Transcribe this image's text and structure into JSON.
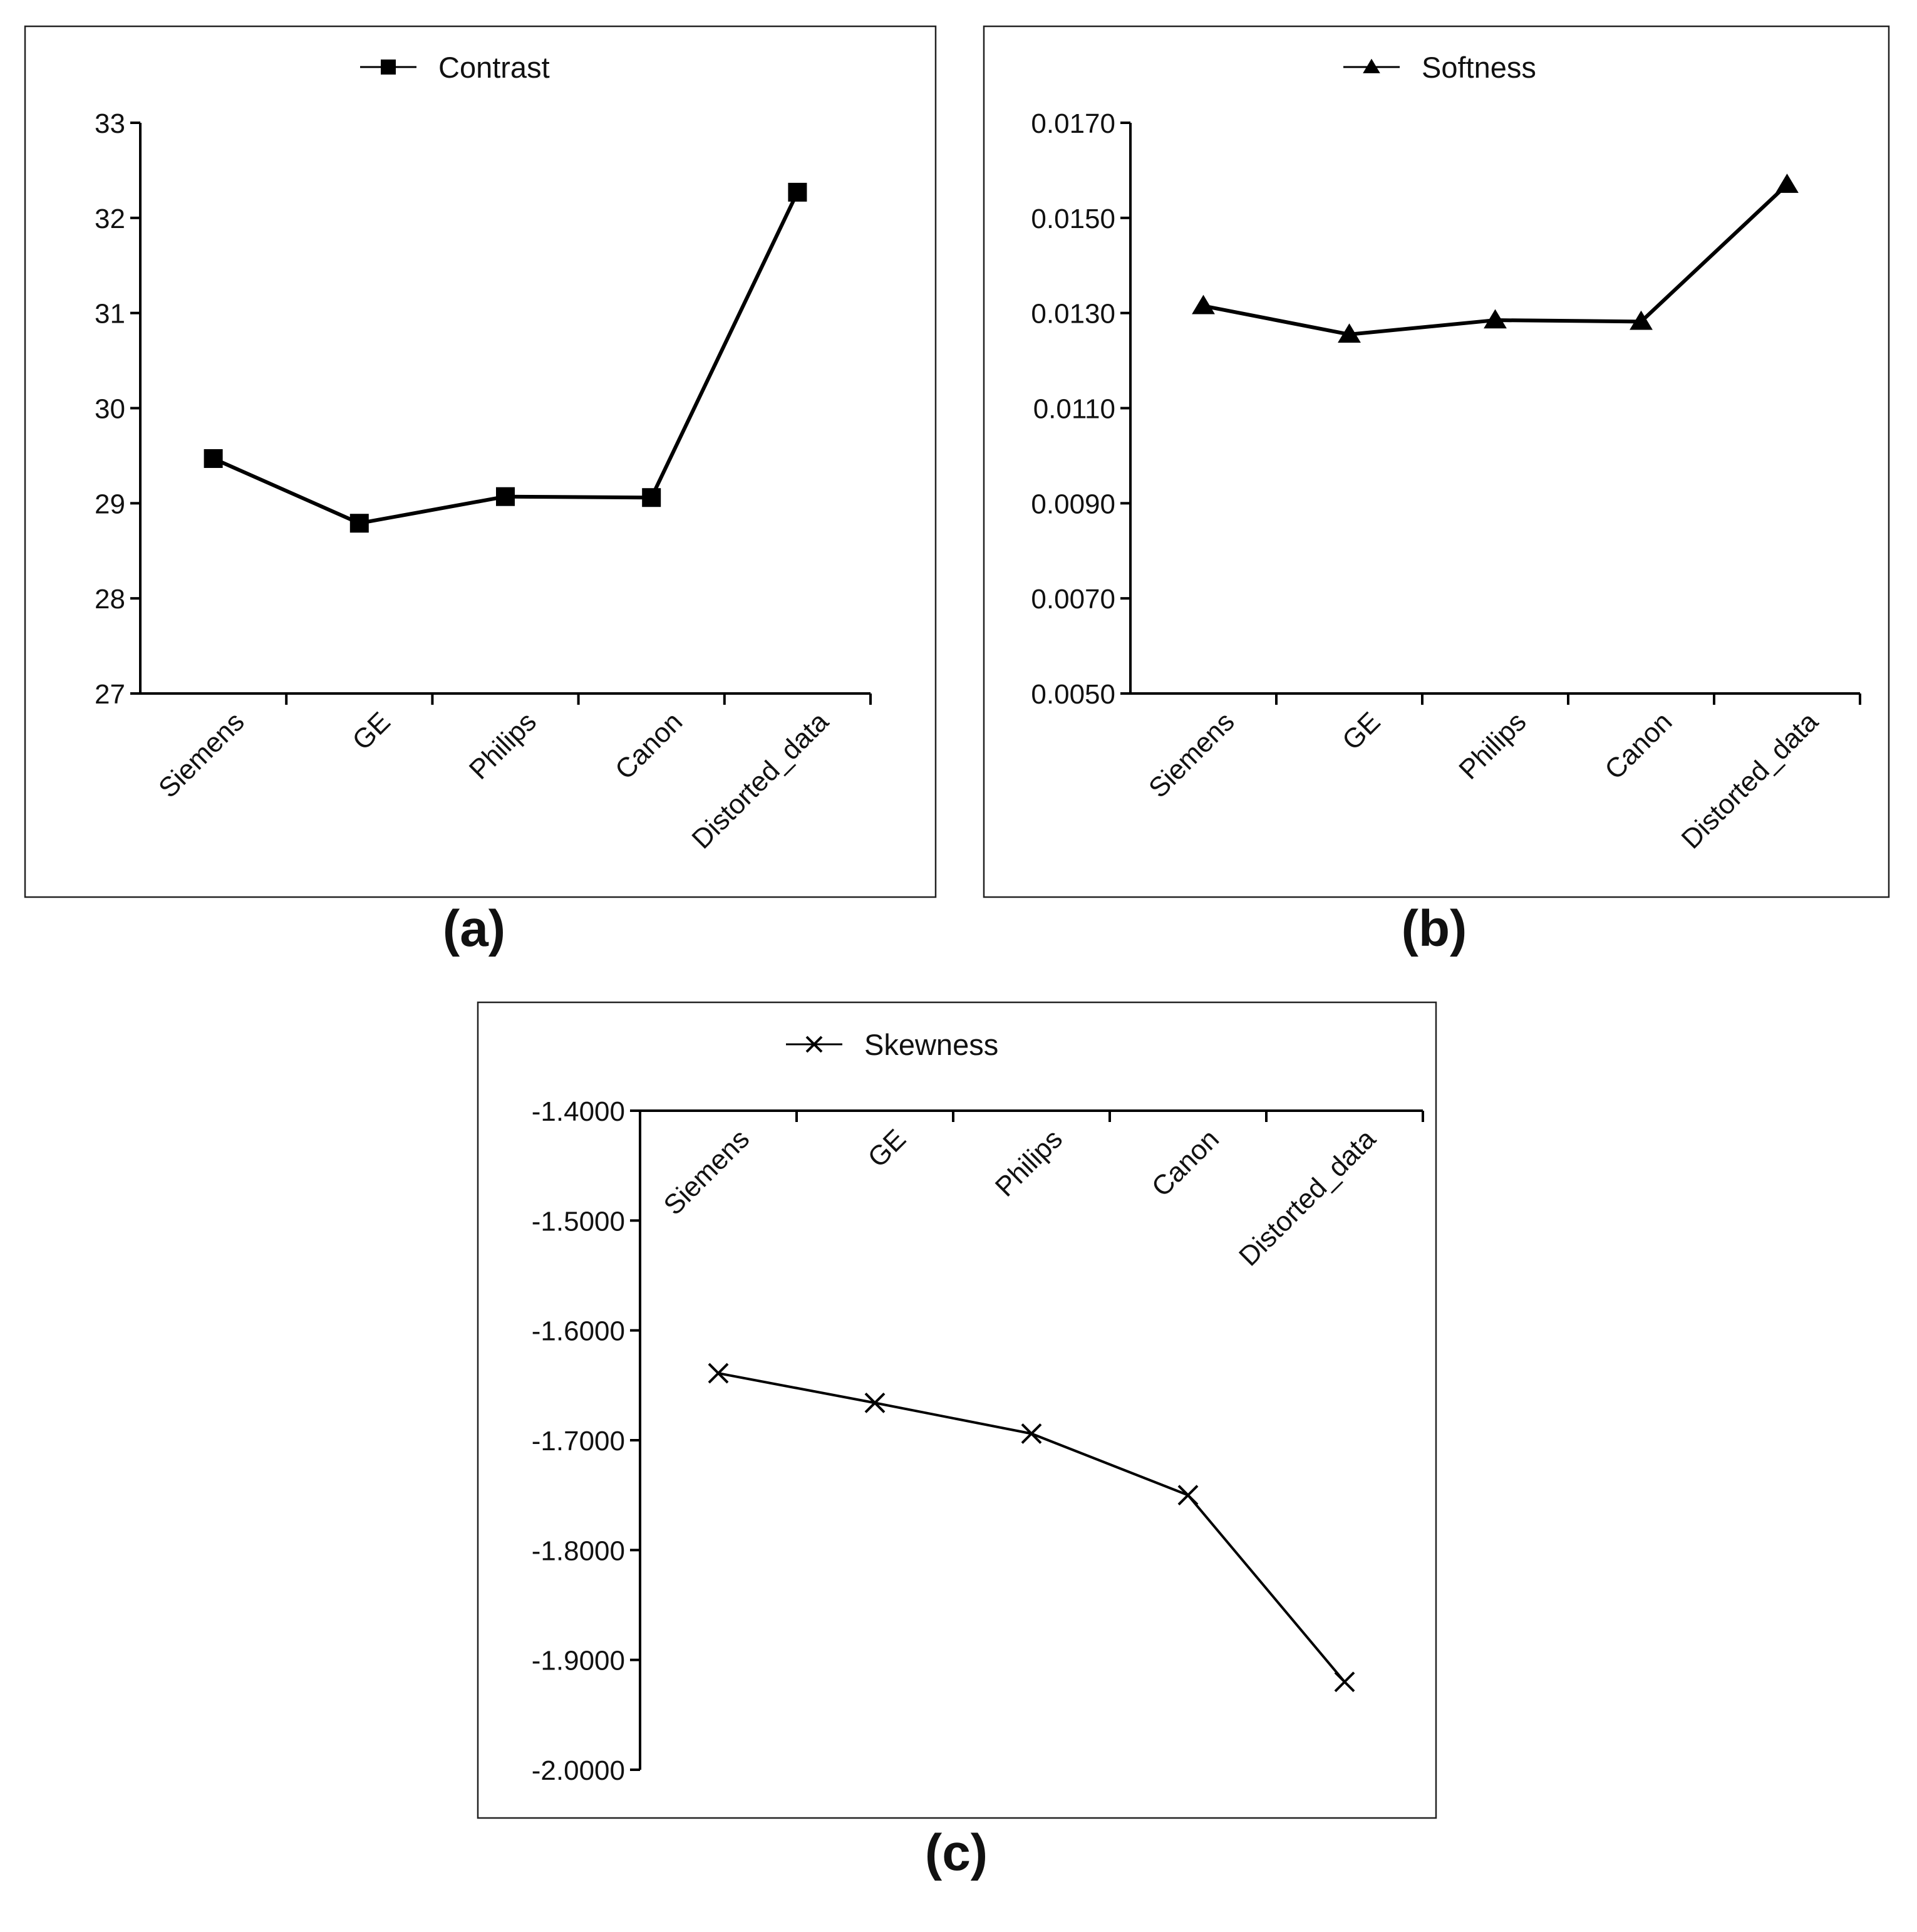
{
  "chart_data": [
    {
      "type": "line",
      "panel_label": "(a)",
      "categories": [
        "Siemens",
        "GE",
        "Philips",
        "Canon",
        "Distorted_data"
      ],
      "series": [
        {
          "name": "Contrast",
          "values": [
            29.47,
            28.79,
            29.07,
            29.06,
            32.27
          ],
          "marker": "square"
        }
      ],
      "yticks": [
        "27",
        "28",
        "29",
        "30",
        "31",
        "32",
        "33"
      ],
      "ylim": [
        27,
        33
      ],
      "x_axis_position": "bottom",
      "legend": "top-center",
      "grid": false,
      "title": "",
      "xlabel": "",
      "ylabel": ""
    },
    {
      "type": "line",
      "panel_label": "(b)",
      "categories": [
        "Siemens",
        "GE",
        "Philips",
        "Canon",
        "Distorted_data"
      ],
      "series": [
        {
          "name": "Softness",
          "values": [
            0.01315,
            0.01255,
            0.01285,
            0.01282,
            0.0157
          ],
          "marker": "triangle"
        }
      ],
      "yticks": [
        "0.0050",
        "0.0070",
        "0.0090",
        "0.0110",
        "0.0130",
        "0.0150",
        "0.0170"
      ],
      "ylim": [
        0.005,
        0.017
      ],
      "x_axis_position": "bottom",
      "legend": "top-center",
      "grid": false,
      "title": "",
      "xlabel": "",
      "ylabel": ""
    },
    {
      "type": "line",
      "panel_label": "(c)",
      "categories": [
        "Siemens",
        "GE",
        "Philips",
        "Canon",
        "Distorted_data"
      ],
      "series": [
        {
          "name": "Skewness",
          "values": [
            -1.639,
            -1.666,
            -1.694,
            -1.75,
            -1.92
          ],
          "marker": "x"
        }
      ],
      "yticks": [
        "-2.0000",
        "-1.9000",
        "-1.8000",
        "-1.7000",
        "-1.6000",
        "-1.5000",
        "-1.4000"
      ],
      "ylim": [
        -2.0,
        -1.4
      ],
      "x_axis_position": "top",
      "legend": "top-center",
      "grid": false,
      "title": "",
      "xlabel": "",
      "ylabel": ""
    }
  ]
}
